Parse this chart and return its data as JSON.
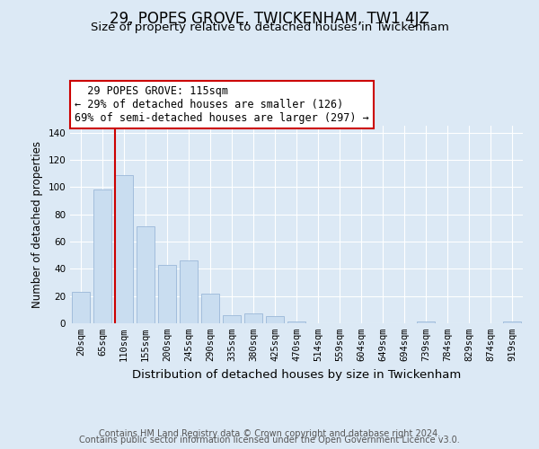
{
  "title": "29, POPES GROVE, TWICKENHAM, TW1 4JZ",
  "subtitle": "Size of property relative to detached houses in Twickenham",
  "xlabel": "Distribution of detached houses by size in Twickenham",
  "ylabel": "Number of detached properties",
  "categories": [
    "20sqm",
    "65sqm",
    "110sqm",
    "155sqm",
    "200sqm",
    "245sqm",
    "290sqm",
    "335sqm",
    "380sqm",
    "425sqm",
    "470sqm",
    "514sqm",
    "559sqm",
    "604sqm",
    "649sqm",
    "694sqm",
    "739sqm",
    "784sqm",
    "829sqm",
    "874sqm",
    "919sqm"
  ],
  "values": [
    23,
    98,
    109,
    71,
    43,
    46,
    22,
    6,
    7,
    5,
    1,
    0,
    0,
    0,
    0,
    0,
    1,
    0,
    0,
    0,
    1
  ],
  "bar_color": "#c9ddf0",
  "bar_edge_color": "#9ab8d8",
  "vline_color": "#cc0000",
  "ylim": [
    0,
    145
  ],
  "yticks": [
    0,
    20,
    40,
    60,
    80,
    100,
    120,
    140
  ],
  "annotation_text": "  29 POPES GROVE: 115sqm  \n← 29% of detached houses are smaller (126)\n69% of semi-detached houses are larger (297) →",
  "annotation_box_color": "#ffffff",
  "annotation_box_edge": "#cc0000",
  "footer_line1": "Contains HM Land Registry data © Crown copyright and database right 2024.",
  "footer_line2": "Contains public sector information licensed under the Open Government Licence v3.0.",
  "background_color": "#dce9f5",
  "plot_bg_color": "#dce9f5",
  "grid_color": "#ffffff",
  "title_fontsize": 12,
  "subtitle_fontsize": 9.5,
  "xlabel_fontsize": 9.5,
  "ylabel_fontsize": 8.5,
  "tick_fontsize": 7.5,
  "annot_fontsize": 8.5,
  "footer_fontsize": 7.0
}
